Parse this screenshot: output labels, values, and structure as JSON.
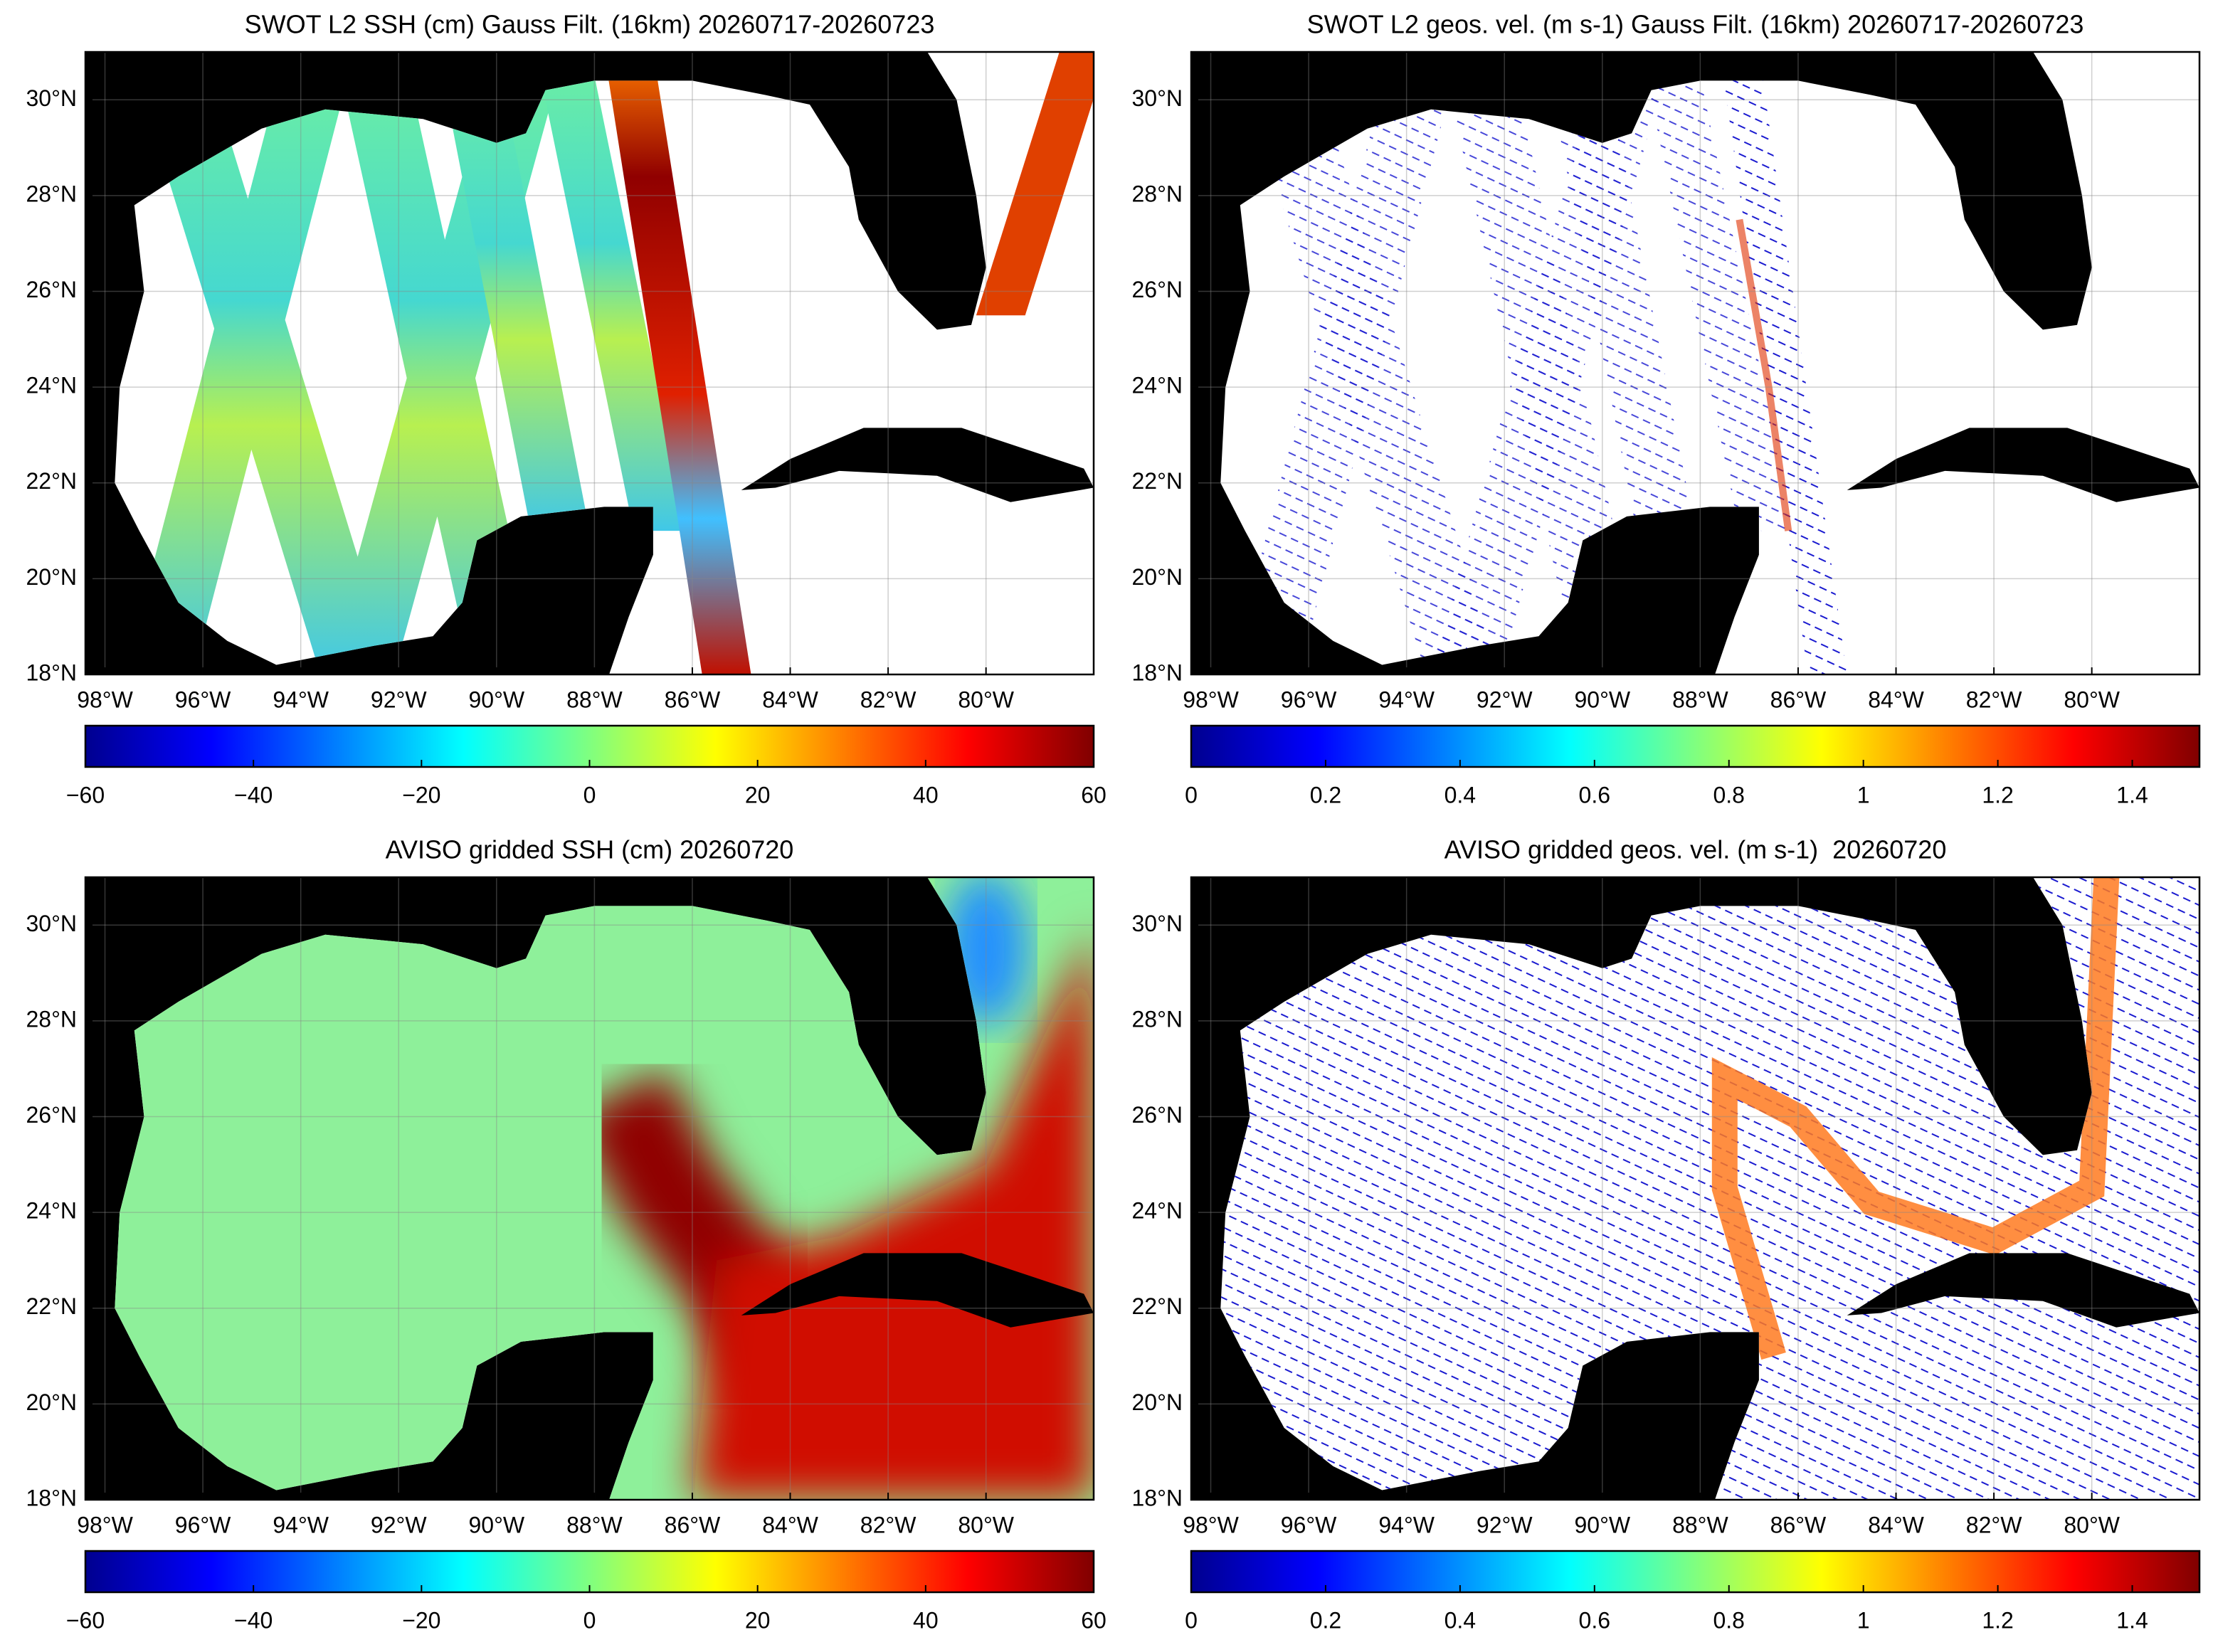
{
  "panels": [
    {
      "title": "SWOT L2 SSH (cm) Gauss Filt. (16km) 20260717-20260723",
      "xlim": [
        -98.4,
        -77.8
      ],
      "ylim": [
        18,
        31
      ],
      "xticks": [
        {
          "value": -98,
          "label": "98°W"
        },
        {
          "value": -96,
          "label": "96°W"
        },
        {
          "value": -94,
          "label": "94°W"
        },
        {
          "value": -92,
          "label": "92°W"
        },
        {
          "value": -90,
          "label": "90°W"
        },
        {
          "value": -88,
          "label": "88°W"
        },
        {
          "value": -86,
          "label": "86°W"
        },
        {
          "value": -84,
          "label": "84°W"
        },
        {
          "value": -82,
          "label": "82°W"
        },
        {
          "value": -80,
          "label": "80°W"
        }
      ],
      "yticks": [
        {
          "value": 18,
          "label": "18°N"
        },
        {
          "value": 20,
          "label": "20°N"
        },
        {
          "value": 22,
          "label": "22°N"
        },
        {
          "value": 24,
          "label": "24°N"
        },
        {
          "value": 26,
          "label": "26°N"
        },
        {
          "value": 28,
          "label": "28°N"
        },
        {
          "value": 30,
          "label": "30°N"
        }
      ],
      "colorbar": {
        "lim": [
          -60,
          60
        ],
        "ticks": [
          {
            "value": -60,
            "label": "−60"
          },
          {
            "value": -40,
            "label": "−40"
          },
          {
            "value": -20,
            "label": "−20"
          },
          0,
          20,
          40,
          60
        ]
      }
    },
    {
      "title": "SWOT L2 geos. vel. (m s-1) Gauss Filt. (16km) 20260717-20260723",
      "xlim": [
        -98.4,
        -77.8
      ],
      "ylim": [
        18,
        31
      ],
      "xticks": [
        {
          "value": -98,
          "label": "98°W"
        },
        {
          "value": -96,
          "label": "96°W"
        },
        {
          "value": -94,
          "label": "94°W"
        },
        {
          "value": -92,
          "label": "92°W"
        },
        {
          "value": -90,
          "label": "90°W"
        },
        {
          "value": -88,
          "label": "88°W"
        },
        {
          "value": -86,
          "label": "86°W"
        },
        {
          "value": -84,
          "label": "84°W"
        },
        {
          "value": -82,
          "label": "82°W"
        },
        {
          "value": -80,
          "label": "80°W"
        }
      ],
      "yticks": [
        {
          "value": 18,
          "label": "18°N"
        },
        {
          "value": 20,
          "label": "20°N"
        },
        {
          "value": 22,
          "label": "22°N"
        },
        {
          "value": 24,
          "label": "24°N"
        },
        {
          "value": 26,
          "label": "26°N"
        },
        {
          "value": 28,
          "label": "28°N"
        },
        {
          "value": 30,
          "label": "30°N"
        }
      ],
      "colorbar": {
        "lim": [
          0,
          1.5
        ],
        "ticks": [
          0,
          0.2,
          0.4,
          0.6,
          0.8,
          1,
          1.2,
          1.4
        ]
      }
    },
    {
      "title": "AVISO gridded SSH (cm) 20260720",
      "xlim": [
        -98.4,
        -77.8
      ],
      "ylim": [
        18,
        31
      ],
      "xticks": [
        {
          "value": -98,
          "label": "98°W"
        },
        {
          "value": -96,
          "label": "96°W"
        },
        {
          "value": -94,
          "label": "94°W"
        },
        {
          "value": -92,
          "label": "92°W"
        },
        {
          "value": -90,
          "label": "90°W"
        },
        {
          "value": -88,
          "label": "88°W"
        },
        {
          "value": -86,
          "label": "86°W"
        },
        {
          "value": -84,
          "label": "84°W"
        },
        {
          "value": -82,
          "label": "82°W"
        },
        {
          "value": -80,
          "label": "80°W"
        }
      ],
      "yticks": [
        {
          "value": 18,
          "label": "18°N"
        },
        {
          "value": 20,
          "label": "20°N"
        },
        {
          "value": 22,
          "label": "22°N"
        },
        {
          "value": 24,
          "label": "24°N"
        },
        {
          "value": 26,
          "label": "26°N"
        },
        {
          "value": 28,
          "label": "28°N"
        },
        {
          "value": 30,
          "label": "30°N"
        }
      ],
      "colorbar": {
        "lim": [
          -60,
          60
        ],
        "ticks": [
          {
            "value": -60,
            "label": "−60"
          },
          {
            "value": -40,
            "label": "−40"
          },
          {
            "value": -20,
            "label": "−20"
          },
          0,
          20,
          40,
          60
        ]
      }
    },
    {
      "title": "AVISO gridded geos. vel. (m s-1)  20260720",
      "xlim": [
        -98.4,
        -77.8
      ],
      "ylim": [
        18,
        31
      ],
      "xticks": [
        {
          "value": -98,
          "label": "98°W"
        },
        {
          "value": -96,
          "label": "96°W"
        },
        {
          "value": -94,
          "label": "94°W"
        },
        {
          "value": -92,
          "label": "92°W"
        },
        {
          "value": -90,
          "label": "90°W"
        },
        {
          "value": -88,
          "label": "88°W"
        },
        {
          "value": -86,
          "label": "86°W"
        },
        {
          "value": -84,
          "label": "84°W"
        },
        {
          "value": -82,
          "label": "82°W"
        },
        {
          "value": -80,
          "label": "80°W"
        }
      ],
      "yticks": [
        {
          "value": 18,
          "label": "18°N"
        },
        {
          "value": 20,
          "label": "20°N"
        },
        {
          "value": 22,
          "label": "22°N"
        },
        {
          "value": 24,
          "label": "24°N"
        },
        {
          "value": 26,
          "label": "26°N"
        },
        {
          "value": 28,
          "label": "28°N"
        },
        {
          "value": 30,
          "label": "30°N"
        }
      ],
      "colorbar": {
        "lim": [
          0,
          1.5
        ],
        "ticks": [
          0,
          0.2,
          0.4,
          0.6,
          0.8,
          1,
          1.2,
          1.4
        ]
      }
    }
  ]
}
